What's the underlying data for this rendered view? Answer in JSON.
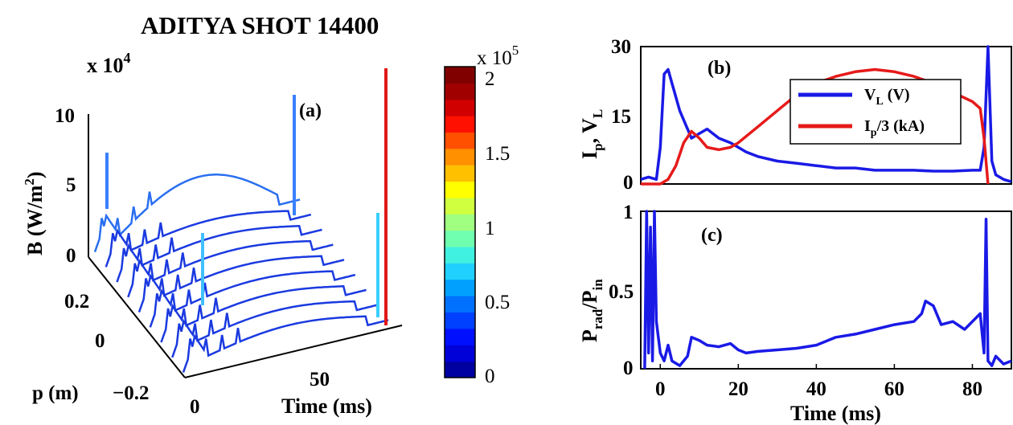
{
  "figure_title": "ADITYA SHOT 14400",
  "colors": {
    "axes": "#000000",
    "vl_line": "#1a1ae6",
    "ip_line": "#e61a1a",
    "colormap": [
      "#0000a0",
      "#0000d8",
      "#0010ff",
      "#0040ff",
      "#0070ff",
      "#00a0ff",
      "#20d0ff",
      "#40f0e0",
      "#70ffb0",
      "#a0ff80",
      "#d0ff40",
      "#ffff00",
      "#ffc000",
      "#ff9000",
      "#ff5000",
      "#ff1000",
      "#d00000",
      "#a00000",
      "#800000"
    ]
  },
  "chart_data": [
    {
      "panel": "(a)",
      "type": "surface-waterfall",
      "title": "ADITYA SHOT 14400",
      "zlabel": "B (W/m2)",
      "z_multiplier": "x 10^4",
      "z_ticks": [
        "0",
        "5",
        "10"
      ],
      "ylabel": "p (m)",
      "y_ticks": [
        "0.2",
        "0",
        "−0.2"
      ],
      "xlabel": "Time (ms)",
      "x_ticks": [
        "0",
        "50"
      ],
      "colorbar": {
        "multiplier": "x 10^5",
        "ticks": [
          "2",
          "1.5",
          "1",
          "0.5",
          "0"
        ],
        "range": [
          0,
          2.1
        ]
      }
    },
    {
      "panel": "(b)",
      "type": "line",
      "ylabel": "Ip, VL",
      "yticks": [
        "0",
        "15",
        "30"
      ],
      "ylim": [
        0,
        30
      ],
      "xlim": [
        -5,
        90
      ],
      "legend": {
        "placement": "center-right",
        "entries": [
          "VL (V)",
          "Ip/3 (kA)"
        ]
      },
      "series": [
        {
          "name": "VL (V)",
          "x": [
            -5,
            -3,
            -1,
            0,
            1,
            2,
            3,
            5,
            7,
            8,
            10,
            12,
            15,
            18,
            20,
            22,
            25,
            30,
            35,
            40,
            45,
            50,
            55,
            60,
            65,
            70,
            75,
            80,
            82,
            83,
            84,
            85,
            86,
            88,
            90
          ],
          "y": [
            1,
            1.5,
            1,
            8,
            24,
            25,
            22,
            16,
            12,
            10,
            11,
            12,
            10,
            9,
            8,
            7,
            6,
            5,
            4.5,
            4,
            3.5,
            3.5,
            3,
            3,
            3,
            2.8,
            2.8,
            3,
            3,
            8,
            30,
            5,
            2,
            1,
            0.5
          ]
        },
        {
          "name": "Ip/3 (kA)",
          "x": [
            -5,
            -2,
            0,
            2,
            4,
            6,
            8,
            10,
            12,
            15,
            18,
            20,
            25,
            30,
            35,
            40,
            45,
            50,
            55,
            60,
            65,
            70,
            75,
            80,
            82,
            83,
            84
          ],
          "y": [
            0,
            0,
            0,
            1,
            4,
            9,
            11.5,
            10,
            8,
            7.5,
            8,
            9,
            12.5,
            16,
            19.5,
            22,
            23.5,
            24.5,
            25,
            24.5,
            23.5,
            22,
            20,
            18,
            16.5,
            10,
            0
          ]
        }
      ]
    },
    {
      "panel": "(c)",
      "type": "line",
      "ylabel": "Prad/Pin",
      "xlabel": "Time (ms)",
      "yticks": [
        "0",
        "0.5",
        "1"
      ],
      "xticks": [
        "0",
        "20",
        "40",
        "60",
        "80"
      ],
      "ylim": [
        0,
        1
      ],
      "xlim": [
        -5,
        90
      ],
      "series": [
        {
          "x": [
            -4,
            -3.5,
            -3,
            -2.5,
            -2,
            -1.5,
            -1,
            0,
            1,
            2,
            3,
            5,
            7,
            8,
            10,
            12,
            15,
            18,
            20,
            22,
            25,
            30,
            35,
            40,
            45,
            50,
            55,
            60,
            65,
            67,
            68,
            70,
            72,
            75,
            78,
            80,
            82,
            83,
            83.5,
            84,
            85,
            86,
            88,
            90
          ],
          "y": [
            0,
            1,
            0.1,
            0.9,
            0.05,
            1,
            0.3,
            0.1,
            0.05,
            0.15,
            0.05,
            0.02,
            0.08,
            0.2,
            0.18,
            0.15,
            0.14,
            0.16,
            0.12,
            0.1,
            0.11,
            0.12,
            0.13,
            0.15,
            0.2,
            0.22,
            0.25,
            0.28,
            0.3,
            0.35,
            0.43,
            0.4,
            0.28,
            0.3,
            0.25,
            0.3,
            0.35,
            0.1,
            0.95,
            0.05,
            0.02,
            0.08,
            0.03,
            0.05
          ]
        }
      ]
    }
  ]
}
